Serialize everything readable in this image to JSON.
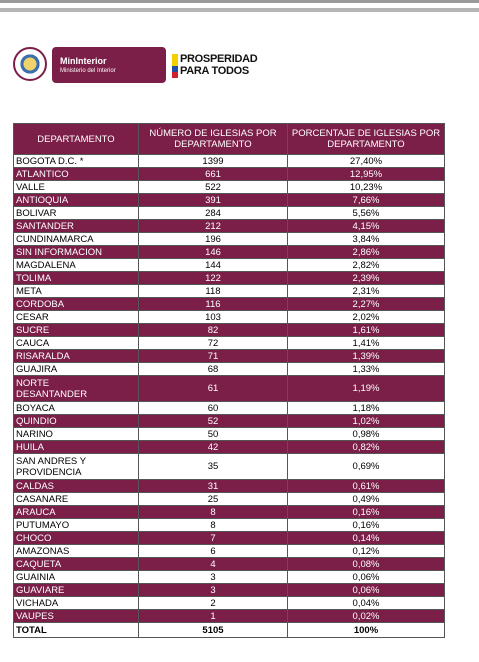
{
  "header": {
    "ministry": "MinInterior",
    "ministry_subtitle": "Ministerio del Interior",
    "slogan_line1": "PROSPERIDAD",
    "slogan_line2": "PARA TODOS"
  },
  "table": {
    "columns": [
      "DEPARTAMENTO",
      "NÚMERO DE IGLESIAS POR DEPARTAMENTO",
      "PORCENTAJE DE IGLESIAS POR DEPARTAMENTO"
    ],
    "rows": [
      [
        "BOGOTA D.C. *",
        "1399",
        "27,40%"
      ],
      [
        "ATLANTICO",
        "661",
        "12,95%"
      ],
      [
        "VALLE",
        "522",
        "10,23%"
      ],
      [
        "ANTIOQUIA",
        "391",
        "7,66%"
      ],
      [
        "BOLIVAR",
        "284",
        "5,56%"
      ],
      [
        "SANTANDER",
        "212",
        "4,15%"
      ],
      [
        "CUNDINAMARCA",
        "196",
        "3,84%"
      ],
      [
        "SIN INFORMACION",
        "146",
        "2,86%"
      ],
      [
        "MAGDALENA",
        "144",
        "2,82%"
      ],
      [
        "TOLIMA",
        "122",
        "2,39%"
      ],
      [
        "META",
        "118",
        "2,31%"
      ],
      [
        "CORDOBA",
        "116",
        "2,27%"
      ],
      [
        "CESAR",
        "103",
        "2,02%"
      ],
      [
        "SUCRE",
        "82",
        "1,61%"
      ],
      [
        "CAUCA",
        "72",
        "1,41%"
      ],
      [
        "RISARALDA",
        "71",
        "1,39%"
      ],
      [
        "GUAJIRA",
        "68",
        "1,33%"
      ],
      [
        "NORTE\nDESANTANDER",
        "61",
        "1,19%"
      ],
      [
        "BOYACA",
        "60",
        "1,18%"
      ],
      [
        "QUINDIO",
        "52",
        "1,02%"
      ],
      [
        "NARINO",
        "50",
        "0,98%"
      ],
      [
        "HUILA",
        "42",
        "0,82%"
      ],
      [
        "SAN ANDRES Y\nPROVIDENCIA",
        "35",
        "0,69%"
      ],
      [
        "CALDAS",
        "31",
        "0,61%"
      ],
      [
        "CASANARE",
        "25",
        "0,49%"
      ],
      [
        "ARAUCA",
        "8",
        "0,16%"
      ],
      [
        "PUTUMAYO",
        "8",
        "0,16%"
      ],
      [
        "CHOCO",
        "7",
        "0,14%"
      ],
      [
        "AMAZONAS",
        "6",
        "0,12%"
      ],
      [
        "CAQUETA",
        "4",
        "0,08%"
      ],
      [
        "GUAINIA",
        "3",
        "0,06%"
      ],
      [
        "GUAVIARE",
        "3",
        "0,06%"
      ],
      [
        "VICHADA",
        "2",
        "0,04%"
      ],
      [
        "VAUPES",
        "1",
        "0,02%"
      ]
    ],
    "total": [
      "TOTAL",
      "5105",
      "100%"
    ]
  }
}
